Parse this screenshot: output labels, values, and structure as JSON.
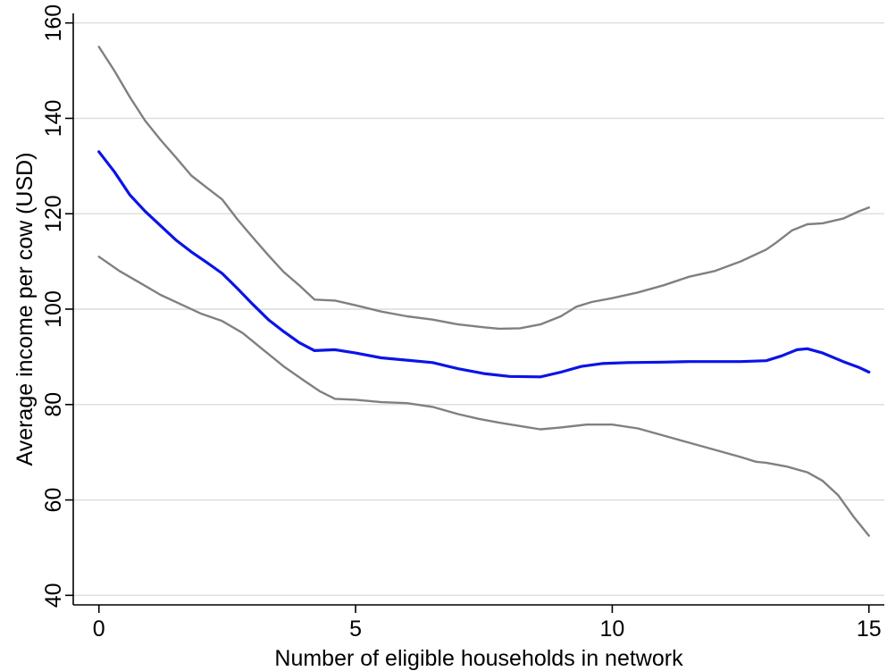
{
  "chart_data": {
    "type": "line",
    "xlabel": "Number of eligible households in network",
    "ylabel": "Average income per cow (USD)",
    "xlim": [
      -0.5,
      15.3
    ],
    "ylim": [
      38,
      162
    ],
    "xticks": [
      0,
      5,
      10,
      15
    ],
    "yticks": [
      40,
      60,
      80,
      100,
      120,
      140,
      160
    ],
    "grid": "horizontal",
    "colors": {
      "mean": "#0a14e6",
      "bounds": "#808080"
    },
    "series": [
      {
        "role": "upper-bound",
        "x": [
          0,
          0.3,
          0.6,
          0.9,
          1.2,
          1.5,
          1.8,
          2.1,
          2.4,
          2.7,
          3.0,
          3.3,
          3.6,
          3.9,
          4.2,
          4.6,
          5.0,
          5.5,
          6.0,
          6.5,
          7.0,
          7.5,
          7.8,
          8.2,
          8.6,
          9.0,
          9.3,
          9.6,
          10.0,
          10.5,
          11.0,
          11.5,
          12.0,
          12.5,
          13.0,
          13.2,
          13.5,
          13.8,
          14.1,
          14.5,
          14.8,
          15.0
        ],
        "y": [
          155,
          150,
          144.5,
          139.5,
          135.5,
          131.8,
          128,
          125.5,
          123,
          118.8,
          115,
          111.3,
          107.8,
          105,
          102,
          101.8,
          100.8,
          99.5,
          98.5,
          97.8,
          96.8,
          96.2,
          95.9,
          96,
          96.8,
          98.5,
          100.5,
          101.5,
          102.3,
          103.5,
          105,
          106.8,
          108,
          110,
          112.5,
          114,
          116.5,
          117.8,
          118,
          119,
          120.5,
          121.3
        ]
      },
      {
        "role": "mean",
        "x": [
          0,
          0.3,
          0.6,
          0.9,
          1.2,
          1.5,
          1.8,
          2.1,
          2.4,
          2.7,
          3.0,
          3.3,
          3.6,
          3.9,
          4.2,
          4.6,
          5.0,
          5.5,
          6.0,
          6.5,
          7.0,
          7.5,
          8.0,
          8.6,
          9.0,
          9.4,
          9.8,
          10.3,
          11.0,
          11.5,
          12.0,
          12.5,
          13.0,
          13.3,
          13.6,
          13.8,
          14.1,
          14.5,
          14.8,
          15.0
        ],
        "y": [
          133,
          128.8,
          124,
          120.5,
          117.5,
          114.5,
          112,
          109.8,
          107.5,
          104.3,
          101,
          97.8,
          95.3,
          93,
          91.3,
          91.5,
          90.8,
          89.8,
          89.3,
          88.8,
          87.5,
          86.5,
          85.9,
          85.8,
          86.8,
          88,
          88.6,
          88.8,
          88.9,
          89,
          89,
          89,
          89.2,
          90.2,
          91.5,
          91.7,
          90.8,
          89,
          87.8,
          86.8
        ]
      },
      {
        "role": "lower-bound",
        "x": [
          0,
          0.4,
          0.8,
          1.2,
          1.6,
          2.0,
          2.4,
          2.8,
          3.2,
          3.6,
          4.0,
          4.3,
          4.6,
          5.0,
          5.5,
          6.0,
          6.5,
          7.0,
          7.4,
          7.8,
          8.2,
          8.6,
          9.0,
          9.5,
          10.0,
          10.5,
          11.0,
          11.5,
          12.0,
          12.5,
          12.8,
          13.0,
          13.4,
          13.8,
          14.1,
          14.4,
          14.7,
          15.0
        ],
        "y": [
          111,
          108,
          105.5,
          103,
          101,
          99,
          97.5,
          95,
          91.5,
          88,
          85,
          82.8,
          81.2,
          81,
          80.5,
          80.3,
          79.5,
          78,
          77,
          76.2,
          75.5,
          74.8,
          75.2,
          75.8,
          75.8,
          75,
          73.5,
          72,
          70.5,
          69,
          68,
          67.8,
          67,
          65.8,
          64,
          61,
          56.5,
          52.5
        ]
      }
    ]
  }
}
